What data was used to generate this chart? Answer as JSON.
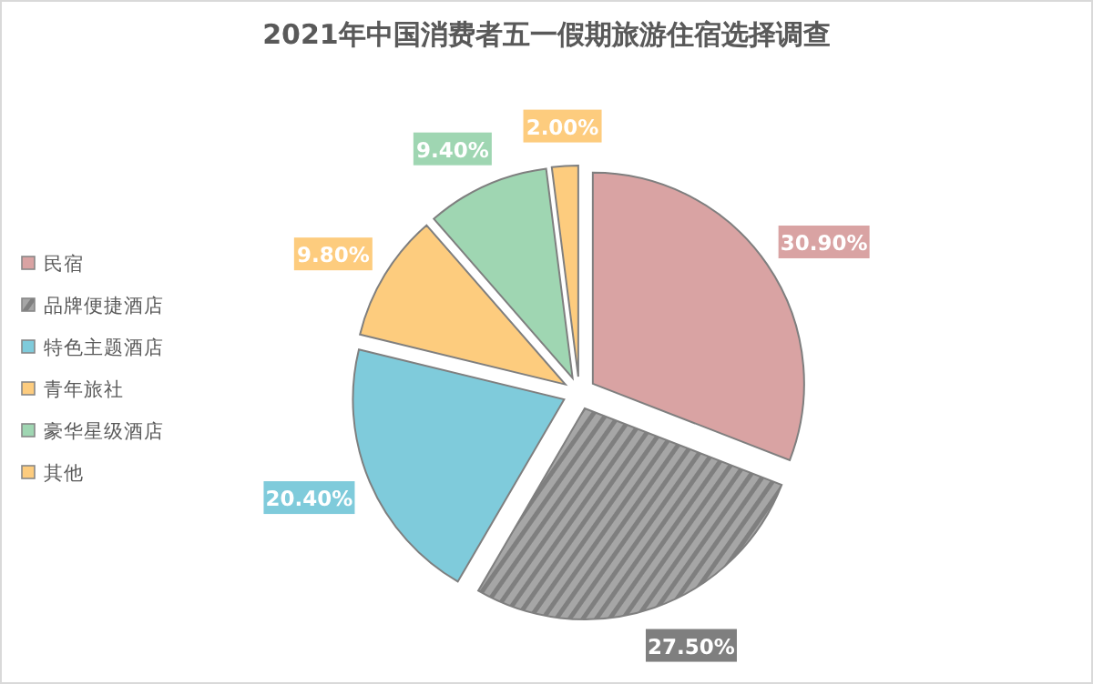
{
  "chart_data": {
    "type": "pie",
    "title": "2021年中国消费者五一假期旅游住宿选择调查",
    "categories": [
      "民宿",
      "品牌便捷酒店",
      "特色主题酒店",
      "青年旅社",
      "豪华星级酒店",
      "其他"
    ],
    "values": [
      30.9,
      27.5,
      20.4,
      9.8,
      9.4,
      2.0
    ],
    "colors": [
      "#d9a3a3",
      "#7f7f7f",
      "#7fcbdb",
      "#fdcc7e",
      "#9fd6b2",
      "#fdcc7e"
    ],
    "value_labels": [
      "30.90%",
      "27.50%",
      "20.40%",
      "9.80%",
      "9.40%",
      "2.00%"
    ],
    "legend": "left"
  }
}
